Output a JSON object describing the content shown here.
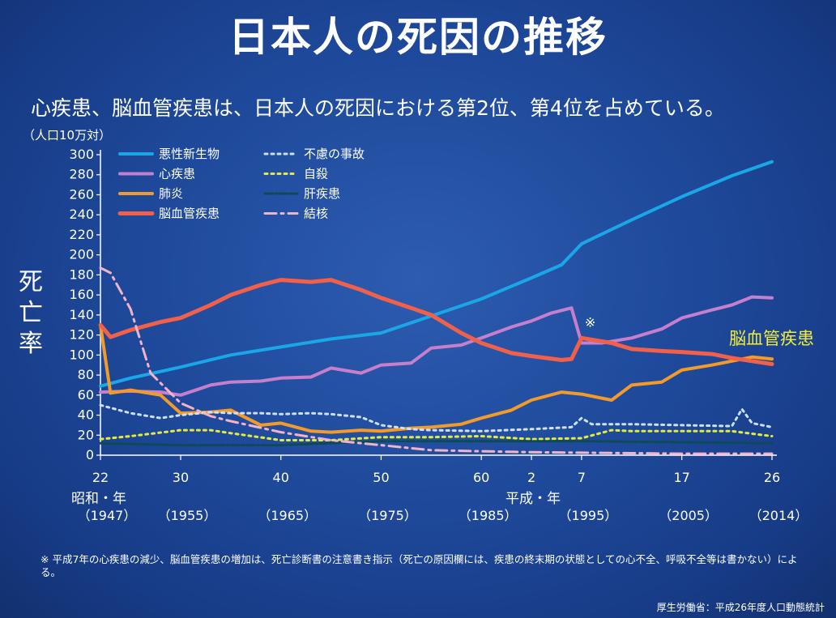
{
  "header": {
    "title": "日本人の死因の推移",
    "subtitle": "心疾患、脳血管疾患は、日本人の死因における第2位、第4位を占めている。"
  },
  "chart_data": {
    "type": "line",
    "unit_label": "（人口10万対）",
    "ylabel": "死亡率",
    "ylim": [
      0,
      300
    ],
    "yticks": [
      0,
      20,
      40,
      60,
      80,
      100,
      120,
      140,
      160,
      180,
      200,
      220,
      240,
      260,
      280,
      300
    ],
    "xlim": [
      1947,
      2014
    ],
    "xticks": [
      {
        "year": 1947,
        "label": "22"
      },
      {
        "year": 1955,
        "label": "30"
      },
      {
        "year": 1965,
        "label": "40"
      },
      {
        "year": 1975,
        "label": "50"
      },
      {
        "year": 1985,
        "label": "60"
      },
      {
        "year": 1990,
        "label": "2"
      },
      {
        "year": 1995,
        "label": "7"
      },
      {
        "year": 2005,
        "label": "17"
      },
      {
        "year": 2014,
        "label": "26"
      }
    ],
    "era_showa": "昭和・年",
    "era_heisei": "平成・年",
    "year_labels": [
      {
        "year": 1947,
        "label": "（1947）"
      },
      {
        "year": 1955,
        "label": "（1955）"
      },
      {
        "year": 1965,
        "label": "（1965）"
      },
      {
        "year": 1975,
        "label": "（1975）"
      },
      {
        "year": 1985,
        "label": "（1985）"
      },
      {
        "year": 1995,
        "label": "（1995）"
      },
      {
        "year": 2005,
        "label": "（2005）"
      },
      {
        "year": 2014,
        "label": "（2014）"
      }
    ],
    "annotation_mark": "※",
    "highlight_label": "脳血管疾患",
    "series": [
      {
        "name": "悪性新生物",
        "color": "#1aa7e8",
        "dash": "solid",
        "width": 4,
        "x": [
          1947,
          1950,
          1955,
          1960,
          1965,
          1970,
          1975,
          1980,
          1985,
          1990,
          1993,
          1995,
          2000,
          2005,
          2010,
          2014
        ],
        "y": [
          69,
          77,
          88,
          100,
          108,
          116,
          122,
          139,
          156,
          177,
          190,
          211,
          235,
          258,
          279,
          293
        ]
      },
      {
        "name": "心疾患",
        "color": "#c57fcc",
        "dash": "solid",
        "width": 4,
        "x": [
          1947,
          1950,
          1953,
          1955,
          1958,
          1960,
          1963,
          1965,
          1968,
          1970,
          1973,
          1975,
          1978,
          1980,
          1983,
          1985,
          1988,
          1990,
          1992,
          1994,
          1995,
          1997,
          2000,
          2003,
          2005,
          2008,
          2010,
          2012,
          2014
        ],
        "y": [
          63,
          64,
          63,
          60,
          70,
          73,
          74,
          77,
          78,
          87,
          82,
          90,
          92,
          107,
          110,
          117,
          128,
          134,
          142,
          147,
          112,
          112,
          117,
          126,
          137,
          145,
          150,
          158,
          157
        ]
      },
      {
        "name": "肺炎",
        "color": "#f29b2a",
        "dash": "solid",
        "width": 4,
        "x": [
          1947,
          1948,
          1950,
          1953,
          1955,
          1958,
          1960,
          1963,
          1965,
          1968,
          1970,
          1973,
          1975,
          1978,
          1980,
          1983,
          1985,
          1988,
          1990,
          1993,
          1995,
          1998,
          2000,
          2003,
          2005,
          2008,
          2010,
          2012,
          2014
        ],
        "y": [
          130,
          62,
          65,
          60,
          42,
          43,
          45,
          30,
          32,
          24,
          23,
          25,
          24,
          27,
          28,
          31,
          37,
          45,
          55,
          63,
          61,
          55,
          70,
          73,
          85,
          90,
          94,
          98,
          96
        ]
      },
      {
        "name": "脳血管疾患",
        "color": "#f0604a",
        "dash": "solid",
        "width": 5,
        "x": [
          1947,
          1948,
          1950,
          1953,
          1955,
          1958,
          1960,
          1963,
          1965,
          1968,
          1970,
          1973,
          1975,
          1978,
          1980,
          1983,
          1985,
          1988,
          1990,
          1993,
          1994,
          1995,
          1998,
          2000,
          2003,
          2005,
          2008,
          2010,
          2012,
          2014
        ],
        "y": [
          130,
          118,
          125,
          133,
          137,
          150,
          160,
          170,
          175,
          173,
          175,
          165,
          157,
          147,
          140,
          122,
          112,
          102,
          99,
          95,
          96,
          117,
          112,
          106,
          104,
          103,
          101,
          97,
          94,
          91
        ]
      },
      {
        "name": "不慮の事故",
        "color": "#cfe0ff",
        "dash": "3 5",
        "width": 3,
        "x": [
          1947,
          1950,
          1953,
          1955,
          1958,
          1960,
          1963,
          1965,
          1968,
          1970,
          1973,
          1975,
          1978,
          1980,
          1985,
          1990,
          1994,
          1995,
          1996,
          2000,
          2005,
          2010,
          2011,
          2012,
          2014
        ],
        "y": [
          50,
          42,
          37,
          40,
          43,
          42,
          42,
          41,
          42,
          41,
          38,
          30,
          26,
          25,
          24,
          26,
          28,
          37,
          31,
          31,
          30,
          29,
          46,
          32,
          28
        ]
      },
      {
        "name": "自殺",
        "color": "#e4ec3a",
        "dash": "3 5",
        "width": 3,
        "x": [
          1947,
          1950,
          1955,
          1958,
          1960,
          1965,
          1970,
          1975,
          1980,
          1985,
          1990,
          1995,
          1998,
          2000,
          2005,
          2010,
          2014
        ],
        "y": [
          16,
          19,
          25,
          25,
          22,
          15,
          15,
          18,
          18,
          19,
          16,
          17,
          25,
          24,
          24,
          24,
          19
        ]
      },
      {
        "name": "肝疾患",
        "color": "#0d4a55",
        "dash": "10 3 2 3",
        "width": 3,
        "x": [
          1947,
          1955,
          1965,
          1975,
          1985,
          1995,
          2005,
          2014
        ],
        "y": [
          12,
          10,
          10,
          14,
          14,
          14,
          13,
          12
        ]
      },
      {
        "name": "結核",
        "color": "#f2b3c8",
        "dash": "14 6 3 6",
        "width": 3,
        "x": [
          1947,
          1948,
          1950,
          1952,
          1955,
          1958,
          1960,
          1965,
          1970,
          1975,
          1980,
          1985,
          1990,
          1995,
          2000,
          2005,
          2010,
          2014
        ],
        "y": [
          187,
          182,
          146,
          82,
          52,
          39,
          34,
          23,
          15,
          10,
          5,
          4,
          3,
          2.5,
          2,
          1.5,
          1.5,
          1.5
        ]
      }
    ]
  },
  "note": {
    "text": "※ 平成7年の心疾患の減少、脳血管疾患の増加は、死亡診断書の注意書き指示（死亡の原因欄には、疾患の終末期の状態としての心不全、呼吸不全等は書かない）による。"
  },
  "source": {
    "text": "厚生労働省：平成26年度人口動態統計"
  }
}
